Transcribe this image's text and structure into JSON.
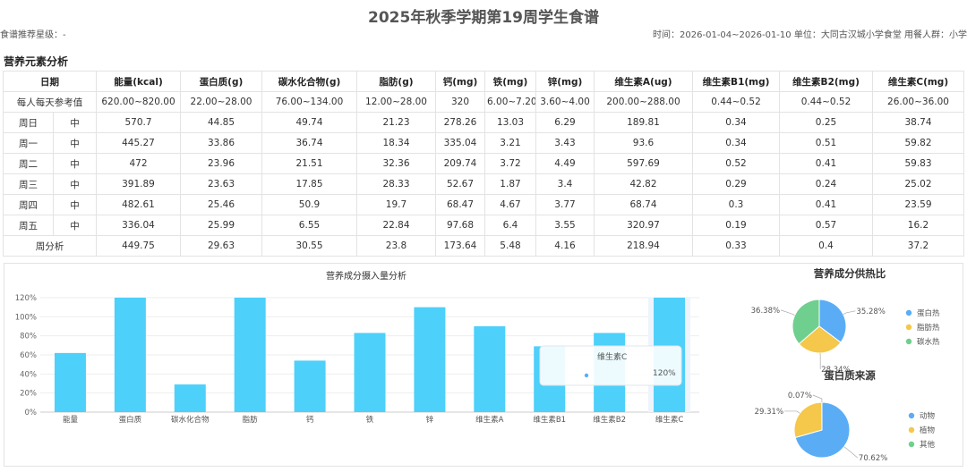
{
  "header": {
    "title": "2025年秋季学期第19周学生食谱",
    "rating": "食谱推荐星级：-",
    "meta": "时间：2026-01-04~2026-01-10   单位：大同古汉城小学食堂   用餐人群：小学"
  },
  "section_title": "营养元素分析",
  "table": {
    "date_header": "日期",
    "columns": [
      "能量(kcal)",
      "蛋白质(g)",
      "碳水化合物(g)",
      "脂肪(g)",
      "钙(mg)",
      "铁(mg)",
      "锌(mg)",
      "维生素A(ug)",
      "维生素B1(mg)",
      "维生素B2(mg)",
      "维生素C(mg)"
    ],
    "reference": {
      "label": "每人每天参考值",
      "values": [
        "620.00~820.00",
        "22.00~28.00",
        "76.00~134.00",
        "12.00~28.00",
        "320",
        "6.00~7.20",
        "3.60~4.00",
        "200.00~288.00",
        "0.44~0.52",
        "0.44~0.52",
        "26.00~36.00"
      ]
    },
    "rows": [
      {
        "day": "周日",
        "meal": "中",
        "values": [
          "570.7",
          "44.85",
          "49.74",
          "21.23",
          "278.26",
          "13.03",
          "6.29",
          "189.81",
          "0.34",
          "0.25",
          "38.74"
        ]
      },
      {
        "day": "周一",
        "meal": "中",
        "values": [
          "445.27",
          "33.86",
          "36.74",
          "18.34",
          "335.04",
          "3.21",
          "3.43",
          "93.6",
          "0.34",
          "0.51",
          "59.82"
        ]
      },
      {
        "day": "周二",
        "meal": "中",
        "values": [
          "472",
          "23.96",
          "21.51",
          "32.36",
          "209.74",
          "3.72",
          "4.49",
          "597.69",
          "0.52",
          "0.41",
          "59.83"
        ]
      },
      {
        "day": "周三",
        "meal": "中",
        "values": [
          "391.89",
          "23.63",
          "17.85",
          "28.33",
          "52.67",
          "1.87",
          "3.4",
          "42.82",
          "0.29",
          "0.24",
          "25.02"
        ]
      },
      {
        "day": "周四",
        "meal": "中",
        "values": [
          "482.61",
          "25.46",
          "50.9",
          "19.7",
          "68.47",
          "4.67",
          "3.77",
          "68.74",
          "0.3",
          "0.41",
          "23.59"
        ]
      },
      {
        "day": "周五",
        "meal": "中",
        "values": [
          "336.04",
          "25.99",
          "6.55",
          "22.84",
          "97.68",
          "6.4",
          "3.55",
          "320.97",
          "0.19",
          "0.57",
          "16.2"
        ]
      }
    ],
    "summary": {
      "label": "周分析",
      "values": [
        "449.75",
        "29.63",
        "30.55",
        "23.8",
        "173.64",
        "5.48",
        "4.16",
        "218.94",
        "0.33",
        "0.4",
        "37.2"
      ]
    }
  },
  "colors": {
    "bar": "#4dd0fa",
    "pie_blue": "#5aadf5",
    "pie_yellow": "#f5c74a",
    "pie_green": "#6fcf8f"
  },
  "chart_data": [
    {
      "type": "bar",
      "title": "营养成分摄入量分析",
      "categories": [
        "能量",
        "蛋白质",
        "碳水化合物",
        "脂肪",
        "钙",
        "铁",
        "锌",
        "维生素A",
        "维生素B1",
        "维生素B2",
        "维生素C"
      ],
      "values": [
        62,
        120,
        29,
        120,
        54,
        83,
        110,
        90,
        69,
        83,
        120
      ],
      "y_ticks": [
        "0%",
        "20%",
        "40%",
        "60%",
        "80%",
        "100%",
        "120%"
      ],
      "ylim": [
        0,
        120
      ],
      "tooltip": {
        "label": "维生素C",
        "value": "120%"
      }
    },
    {
      "type": "pie",
      "title": "营养成分供热比",
      "labels": [
        "蛋白热",
        "脂肪热",
        "碳水热"
      ],
      "values": [
        35.28,
        28.34,
        36.38
      ],
      "value_labels": [
        "35.28%",
        "28.34%",
        "36.38%"
      ],
      "legend": "right"
    },
    {
      "type": "pie",
      "title": "蛋白质来源",
      "labels": [
        "动物",
        "植物",
        "其他"
      ],
      "values": [
        70.62,
        29.31,
        0.07
      ],
      "value_labels": [
        "70.62%",
        "29.31%",
        "0.07%"
      ],
      "legend": "right"
    }
  ]
}
